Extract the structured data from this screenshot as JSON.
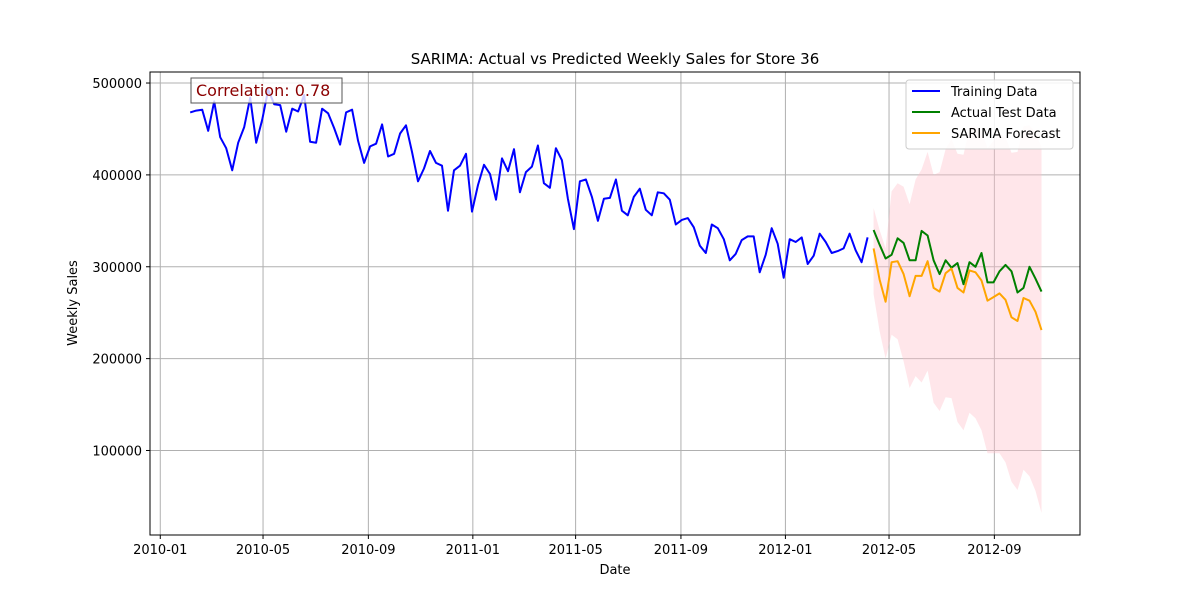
{
  "chart_data": {
    "type": "line",
    "title": "SARIMA: Actual vs Predicted Weekly Sales for Store 36",
    "xlabel": "Date",
    "ylabel": "Weekly Sales",
    "xlim": [
      "2009-12-20",
      "2012-12-10"
    ],
    "ylim": [
      8000,
      512000
    ],
    "grid": true,
    "legend_position": "top-right",
    "x_ticks": [
      "2010-01",
      "2010-05",
      "2010-09",
      "2011-01",
      "2011-05",
      "2011-09",
      "2012-01",
      "2012-05",
      "2012-09"
    ],
    "y_ticks": [
      100000,
      200000,
      300000,
      400000,
      500000
    ],
    "annotation": "Correlation: 0.78",
    "series": [
      {
        "name": "Training Data",
        "color": "#0000ff",
        "start_date": "2010-02-05",
        "step_days": 7,
        "values": [
          468000,
          470000,
          471000,
          448000,
          480000,
          441000,
          429000,
          405000,
          435000,
          452000,
          484000,
          435000,
          460000,
          493000,
          477000,
          476000,
          447000,
          472000,
          469000,
          487000,
          436000,
          435000,
          472000,
          467000,
          451000,
          433000,
          468000,
          471000,
          437000,
          413000,
          431000,
          434000,
          455000,
          420000,
          423000,
          445000,
          454000,
          425000,
          393000,
          407000,
          426000,
          413000,
          410000,
          361000,
          405000,
          410000,
          423000,
          360000,
          389000,
          411000,
          401000,
          373000,
          418000,
          404000,
          428000,
          381000,
          403000,
          409000,
          432000,
          391000,
          386000,
          429000,
          416000,
          374000,
          341000,
          393000,
          395000,
          376000,
          350000,
          374000,
          375000,
          395000,
          361000,
          356000,
          376000,
          385000,
          362000,
          356000,
          381000,
          380000,
          373000,
          346000,
          351000,
          353000,
          343000,
          323000,
          315000,
          346000,
          342000,
          330000,
          307000,
          314000,
          329000,
          333000,
          333000,
          294000,
          313000,
          342000,
          325000,
          288000,
          330000,
          327000,
          332000,
          303000,
          312000,
          336000,
          327000,
          315000,
          317000,
          320000,
          336000,
          318000,
          305000,
          332000
        ]
      },
      {
        "name": "Actual Test Data",
        "color": "#008000",
        "start_date": "2012-04-13",
        "step_days": 7,
        "values": [
          340000,
          324000,
          309000,
          313000,
          331000,
          326000,
          307000,
          307000,
          339000,
          334000,
          307000,
          292000,
          307000,
          299000,
          304000,
          281000,
          305000,
          300000,
          315000,
          283000,
          283000,
          295000,
          302000,
          295000,
          272000,
          277000,
          300000,
          287000,
          273000
        ]
      },
      {
        "name": "SARIMA Forecast",
        "color": "#ffa500",
        "start_date": "2012-04-13",
        "step_days": 7,
        "values": [
          320000,
          286000,
          262000,
          305000,
          306000,
          292000,
          268000,
          290000,
          290000,
          306000,
          277000,
          273000,
          293000,
          298000,
          277000,
          272000,
          296000,
          294000,
          285000,
          263000,
          267000,
          271000,
          264000,
          245000,
          241000,
          266000,
          263000,
          251000,
          231000
        ],
        "ci_lower": [
          270000,
          230000,
          200000,
          226000,
          221000,
          197000,
          168000,
          181000,
          174000,
          187000,
          152000,
          143000,
          158000,
          157000,
          131000,
          122000,
          141000,
          135000,
          122000,
          97000,
          97000,
          97000,
          87000,
          66000,
          57000,
          79000,
          72000,
          56000,
          32000
        ],
        "ci_upper": [
          364000,
          340000,
          320000,
          382000,
          391000,
          387000,
          368000,
          395000,
          406000,
          425000,
          400000,
          403000,
          428000,
          439000,
          423000,
          422000,
          451000,
          453000,
          448000,
          429000,
          437000,
          445000,
          441000,
          424000,
          425000,
          453000,
          454000,
          446000,
          430000
        ],
        "ci_color": "#ffc0cb"
      }
    ]
  }
}
